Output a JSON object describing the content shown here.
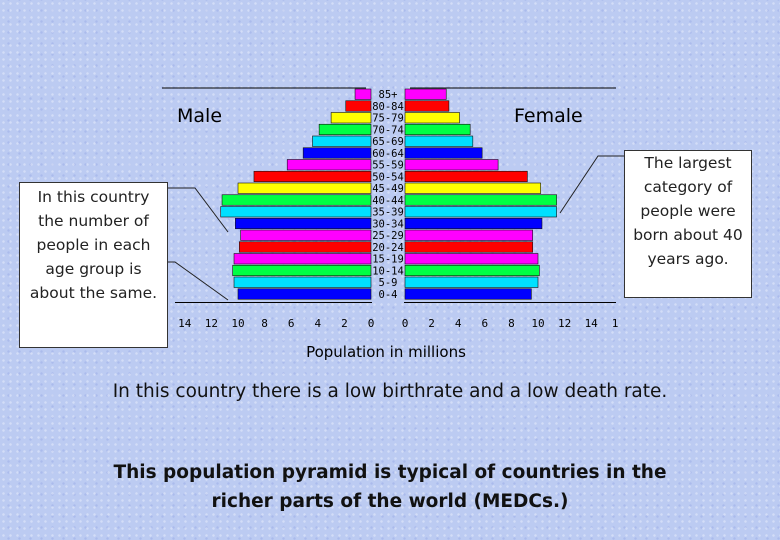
{
  "chart_data": {
    "type": "bar",
    "subtype": "population-pyramid",
    "age_groups": [
      "0-4",
      "5-9",
      "10-14",
      "15-19",
      "20-24",
      "25-29",
      "30-34",
      "35-39",
      "40-44",
      "45-49",
      "50-54",
      "55-59",
      "60-64",
      "65-69",
      "70-74",
      "75-79",
      "80-84",
      "85+"
    ],
    "series": [
      {
        "name": "Male",
        "values": [
          10.0,
          10.3,
          10.4,
          10.3,
          9.9,
          9.8,
          10.2,
          11.3,
          11.2,
          10.0,
          8.8,
          6.3,
          5.1,
          4.4,
          3.9,
          3.0,
          1.9,
          1.2
        ]
      },
      {
        "name": "Female",
        "values": [
          9.5,
          10.0,
          10.1,
          10.0,
          9.6,
          9.6,
          10.3,
          11.4,
          11.4,
          10.2,
          9.2,
          7.0,
          5.8,
          5.1,
          4.9,
          4.1,
          3.3,
          3.1
        ]
      }
    ],
    "bar_colors": [
      "#0000ff",
      "#00e0ff",
      "#00ff44",
      "#ff00ff",
      "#ff0000",
      "#ff00ff",
      "#0000ff",
      "#00e0ff",
      "#00ff44",
      "#ffff00",
      "#ff0000",
      "#ff00ff",
      "#0000ff",
      "#00e0ff",
      "#00ff44",
      "#ffff00",
      "#ff0000",
      "#ff00ff"
    ],
    "male_label": "Male",
    "female_label": "Female",
    "x_ticks_left": [
      "14",
      "12",
      "10",
      "8",
      "6",
      "4",
      "2",
      "0"
    ],
    "x_ticks_right": [
      "0",
      "2",
      "4",
      "6",
      "8",
      "10",
      "12",
      "14",
      "1"
    ],
    "xlabel": "Population in millions",
    "xlim": [
      0,
      14
    ]
  },
  "callouts": {
    "left": "In this country the number of people in each age group is about the same.",
    "right": "The largest category of people were born about 40 years ago."
  },
  "captions": {
    "line1": "In this country there is a low birthrate and a low death rate.",
    "line2": "This population pyramid is typical of countries in the richer parts of the world (MEDCs.)"
  }
}
